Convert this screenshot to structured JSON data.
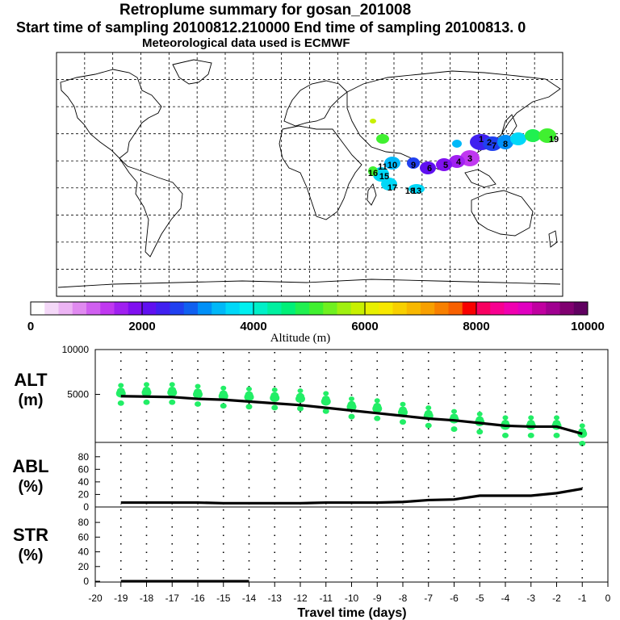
{
  "header": {
    "title": "Retroplume summary for gosan_201008",
    "line2": "Start time of sampling 20100812.210000     End time of sampling 20100813.     0",
    "line3": "Meteorological data used is ECMWF"
  },
  "colorbar": {
    "label": "Altitude  (m)",
    "ticks": [
      "0",
      "2000",
      "4000",
      "6000",
      "8000",
      "10000"
    ],
    "colors": [
      "#ffffff",
      "#f4d8f8",
      "#ecb4f4",
      "#e08af0",
      "#d060f0",
      "#c038f0",
      "#a020f0",
      "#8010f0",
      "#6010f0",
      "#4020f0",
      "#2040f0",
      "#1060f0",
      "#0090f8",
      "#00b8f8",
      "#00d8f8",
      "#00f0f0",
      "#00f0c8",
      "#00f0a0",
      "#00f078",
      "#20f050",
      "#40f030",
      "#70f020",
      "#a0f010",
      "#c8f000",
      "#e8f000",
      "#f8e800",
      "#f8d000",
      "#f8b800",
      "#f8a000",
      "#f88000",
      "#f86000",
      "#f80000",
      "#f80060",
      "#f80090",
      "#f000b0",
      "#e000c0",
      "#c000a0",
      "#a00090",
      "#800070",
      "#600060"
    ]
  },
  "charts": {
    "alt_label": "ALT",
    "alt_unit": "(m)",
    "abl_label": "ABL",
    "abl_unit": "(%)",
    "str_label": "STR",
    "str_unit": "(%)",
    "xlabel": "Travel time (days)"
  },
  "chart_data": [
    {
      "type": "scatter",
      "name": "altitude",
      "title": "ALT (m)",
      "xlim": [
        -20,
        0
      ],
      "ylim": [
        0,
        10000
      ],
      "yticks": [
        5000,
        10000
      ],
      "ytick_labels": [
        "5000",
        "10000"
      ],
      "line": {
        "x": [
          -19,
          -18,
          -17,
          -16,
          -15,
          -14,
          -13,
          -12,
          -11,
          -10,
          -9,
          -8,
          -7,
          -6,
          -5,
          -4,
          -3,
          -2,
          -1
        ],
        "y": [
          4800,
          4750,
          4700,
          4500,
          4400,
          4200,
          4000,
          3800,
          3500,
          3200,
          2900,
          2600,
          2300,
          2100,
          1800,
          1500,
          1400,
          1400,
          600
        ]
      },
      "clusters": {
        "x": [
          -19,
          -18,
          -17,
          -16,
          -15,
          -14,
          -13,
          -12,
          -11,
          -10,
          -9,
          -8,
          -7,
          -6,
          -5,
          -4,
          -3,
          -2,
          -1
        ],
        "y": [
          5100,
          5200,
          5200,
          5000,
          4800,
          4700,
          4600,
          4500,
          4200,
          3600,
          3400,
          3000,
          2600,
          2200,
          1900,
          1500,
          1500,
          1500,
          600
        ]
      },
      "color": "#22ee66"
    },
    {
      "type": "line",
      "name": "abl",
      "title": "ABL (%)",
      "xlim": [
        -20,
        0
      ],
      "ylim": [
        0,
        90
      ],
      "yticks": [
        0,
        20,
        40,
        60,
        80
      ],
      "ytick_labels": [
        "0",
        "20",
        "40",
        "60",
        "80"
      ],
      "x": [
        -19,
        -18,
        -17,
        -16,
        -15,
        -14,
        -13,
        -12,
        -11,
        -10,
        -9,
        -8,
        -7,
        -6,
        -5,
        -4,
        -3,
        -2,
        -1
      ],
      "y": [
        7,
        7,
        7,
        7,
        6,
        6,
        6,
        6,
        7,
        7,
        7,
        8,
        11,
        12,
        18,
        18,
        18,
        22,
        29
      ]
    },
    {
      "type": "line",
      "name": "str",
      "title": "STR (%)",
      "xlim": [
        -20,
        0
      ],
      "ylim": [
        0,
        90
      ],
      "yticks": [
        0,
        20,
        40,
        60,
        80
      ],
      "ytick_labels": [
        "0",
        "20",
        "40",
        "60",
        "80"
      ],
      "x": [
        -19,
        -18,
        -17,
        -16,
        -15,
        -14
      ],
      "y": [
        0,
        0,
        0,
        0,
        0,
        0
      ]
    }
  ],
  "xaxis": {
    "ticks": [
      -20,
      -19,
      -18,
      -17,
      -16,
      -15,
      -14,
      -13,
      -12,
      -11,
      -10,
      -9,
      -8,
      -7,
      -6,
      -5,
      -4,
      -3,
      -2,
      -1,
      0
    ],
    "tick_labels": [
      "-20",
      "-19",
      "-18",
      "-17",
      "-16",
      "-15",
      "-14",
      "-13",
      "-12",
      "-11",
      "-10",
      "-9",
      "-8",
      "-7",
      "-6",
      "-5",
      "-4",
      "-3",
      "-2",
      "-1",
      "0"
    ]
  },
  "map_labels": [
    {
      "text": "1",
      "color": "#4020f0"
    },
    {
      "text": "2",
      "color": "#4020f0"
    },
    {
      "text": "3",
      "color": "#a020f0"
    },
    {
      "text": "4",
      "color": "#c038f0"
    },
    {
      "text": "5",
      "color": "#a020f0"
    },
    {
      "text": "6",
      "color": "#8010f0"
    },
    {
      "text": "7",
      "color": "#2040f0"
    },
    {
      "text": "8",
      "color": "#0090f8"
    },
    {
      "text": "9",
      "color": "#2040f0"
    },
    {
      "text": "10",
      "color": "#00b8f8"
    },
    {
      "text": "11",
      "color": "#20f050"
    },
    {
      "text": "13",
      "color": "#00d8f8"
    },
    {
      "text": "15",
      "color": "#00f0c8"
    },
    {
      "text": "16",
      "color": "#40f030"
    },
    {
      "text": "17",
      "color": "#00d8f8"
    },
    {
      "text": "18",
      "color": "#00d8f8"
    },
    {
      "text": "19",
      "color": "#40f030"
    }
  ]
}
